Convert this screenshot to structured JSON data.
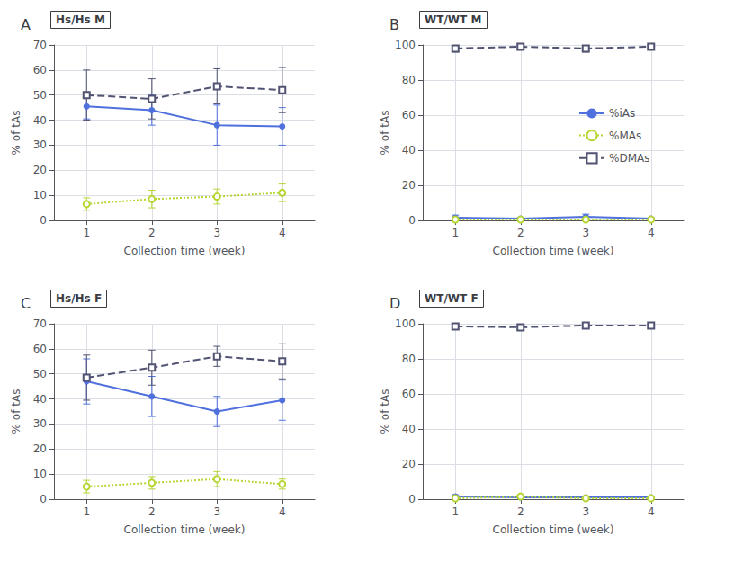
{
  "chart_data": [
    {
      "type": "line",
      "title": "Hs/Hs M",
      "annotations": [
        "A"
      ],
      "xlabel": "Collection time (week)",
      "ylabel": "% of tAs",
      "x": [
        1,
        2,
        3,
        4
      ],
      "xlim": [
        0.5,
        4.5
      ],
      "xticks": [
        1,
        2,
        3,
        4
      ],
      "ylim": [
        0,
        70
      ],
      "yticks": [
        0,
        10,
        20,
        30,
        40,
        50,
        60,
        70
      ],
      "grid": true,
      "series": [
        {
          "name": "%iAs",
          "values": [
            45.5,
            44.0,
            38.0,
            37.5
          ],
          "errors": [
            5.0,
            6.0,
            8.0,
            7.5
          ],
          "marker": "circle",
          "line_style": "solid"
        },
        {
          "name": "%MAs",
          "values": [
            6.5,
            8.5,
            9.5,
            11.0
          ],
          "errors": [
            2.5,
            3.5,
            3.0,
            3.5
          ],
          "marker": "open_circle",
          "line_style": "dotted"
        },
        {
          "name": "%DMAs",
          "values": [
            50.0,
            48.5,
            53.5,
            52.0
          ],
          "errors": [
            10.0,
            8.0,
            7.0,
            9.0
          ],
          "marker": "open_square",
          "line_style": "dashed"
        }
      ]
    },
    {
      "type": "line",
      "title": "WT/WT M",
      "annotations": [
        "B"
      ],
      "xlabel": "Collection time (week)",
      "ylabel": "% of tAs",
      "x": [
        1,
        2,
        3,
        4
      ],
      "xlim": [
        0.5,
        4.5
      ],
      "xticks": [
        1,
        2,
        3,
        4
      ],
      "ylim": [
        0,
        100
      ],
      "yticks": [
        0,
        20,
        40,
        60,
        80,
        100
      ],
      "grid": true,
      "legend": "right",
      "series": [
        {
          "name": "%iAs",
          "values": [
            1.5,
            1.0,
            2.0,
            1.0
          ],
          "errors": [
            1.5,
            0.5,
            1.5,
            0.5
          ],
          "marker": "circle",
          "line_style": "solid"
        },
        {
          "name": "%MAs",
          "values": [
            0.5,
            0.5,
            0.5,
            0.5
          ],
          "errors": [
            0.3,
            0.2,
            0.3,
            0.2
          ],
          "marker": "open_circle",
          "line_style": "dotted"
        },
        {
          "name": "%DMAs",
          "values": [
            98.0,
            99.0,
            98.0,
            99.0
          ],
          "errors": [
            2.0,
            1.0,
            2.0,
            1.0
          ],
          "marker": "open_square",
          "line_style": "dashed"
        }
      ]
    },
    {
      "type": "line",
      "title": "Hs/Hs F",
      "annotations": [
        "C"
      ],
      "xlabel": "Collection time (week)",
      "ylabel": "% of tAs",
      "x": [
        1,
        2,
        3,
        4
      ],
      "xlim": [
        0.5,
        4.5
      ],
      "xticks": [
        1,
        2,
        3,
        4
      ],
      "ylim": [
        0,
        70
      ],
      "yticks": [
        0,
        10,
        20,
        30,
        40,
        50,
        60,
        70
      ],
      "grid": true,
      "series": [
        {
          "name": "%iAs",
          "values": [
            47.0,
            41.0,
            35.0,
            39.5
          ],
          "errors": [
            9.0,
            8.0,
            6.0,
            8.0
          ],
          "marker": "circle",
          "line_style": "solid"
        },
        {
          "name": "%MAs",
          "values": [
            5.0,
            6.5,
            8.0,
            6.0
          ],
          "errors": [
            2.5,
            2.5,
            3.0,
            2.0
          ],
          "marker": "open_circle",
          "line_style": "dotted"
        },
        {
          "name": "%DMAs",
          "values": [
            48.5,
            52.5,
            57.0,
            55.0
          ],
          "errors": [
            9.0,
            7.0,
            4.0,
            7.0
          ],
          "marker": "open_square",
          "line_style": "dashed"
        }
      ]
    },
    {
      "type": "line",
      "title": "WT/WT F",
      "annotations": [
        "D"
      ],
      "xlabel": "Collection time (week)",
      "ylabel": "% of tAs",
      "x": [
        1,
        2,
        3,
        4
      ],
      "xlim": [
        0.5,
        4.5
      ],
      "xticks": [
        1,
        2,
        3,
        4
      ],
      "ylim": [
        0,
        100
      ],
      "yticks": [
        0,
        20,
        40,
        60,
        80,
        100
      ],
      "grid": true,
      "series": [
        {
          "name": "%iAs",
          "values": [
            1.5,
            1.0,
            1.0,
            1.0
          ],
          "errors": [
            1.0,
            0.5,
            0.5,
            0.5
          ],
          "marker": "circle",
          "line_style": "solid"
        },
        {
          "name": "%MAs",
          "values": [
            0.5,
            1.5,
            0.5,
            0.5
          ],
          "errors": [
            0.3,
            1.0,
            0.3,
            0.2
          ],
          "marker": "open_circle",
          "line_style": "dotted"
        },
        {
          "name": "%DMAs",
          "values": [
            98.5,
            98.0,
            99.0,
            99.0
          ],
          "errors": [
            1.5,
            1.5,
            1.0,
            1.0
          ],
          "marker": "open_square",
          "line_style": "dashed"
        }
      ]
    }
  ]
}
